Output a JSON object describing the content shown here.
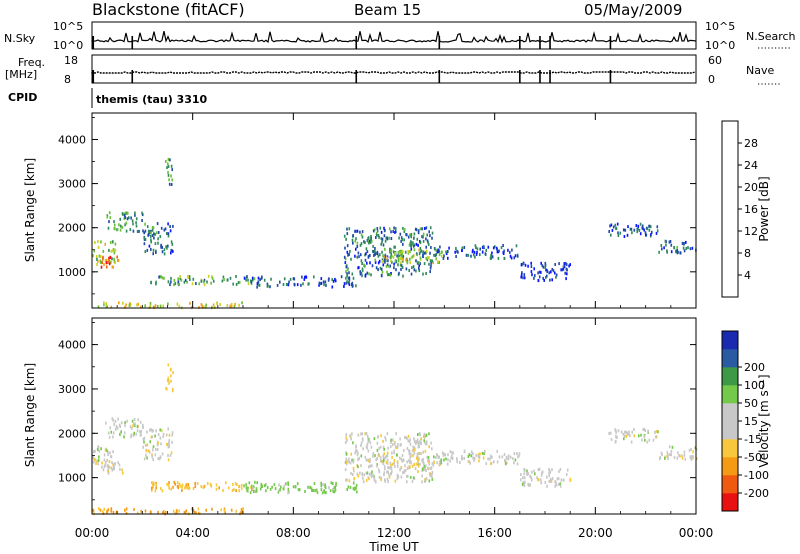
{
  "header": {
    "radar": "Blackstone (fitACF)",
    "beam": "Beam 15",
    "date": "05/May/2009"
  },
  "strips": {
    "nsky_label": "N.Sky",
    "nsky_top_tick": "10^5",
    "nsky_bottom_tick": "10^0",
    "nsearch_label": "N.Search",
    "nsearch_top_tick": "10^5",
    "nsearch_bottom_tick": "10^0",
    "freq_label": "Freq.",
    "freq_unit": "[MHz]",
    "freq_top_tick": "18",
    "freq_bottom_tick": "8",
    "nave_label": "Nave",
    "nave_top_tick": "60",
    "nave_bottom_tick": "0",
    "cpid_label": "CPID",
    "cpid_value": "themis (tau) 3310"
  },
  "colors": {
    "power_scale": [
      "#0a14ff",
      "#1f4aa8",
      "#2f8a5a",
      "#68c036",
      "#c8d220",
      "#f4a21a",
      "#f06418",
      "#e81010"
    ],
    "velocity_scale": [
      "#e81010",
      "#f05a10",
      "#f59a14",
      "#f7c83c",
      "#c8c8c8",
      "#c8c8c8",
      "#74c84a",
      "#3c9a46",
      "#2a5aa2",
      "#1a2ab0"
    ]
  },
  "chart_data": {
    "type": "heatmap",
    "xlabel": "Time UT",
    "x_ticks": [
      "00:00",
      "04:00",
      "08:00",
      "12:00",
      "16:00",
      "20:00",
      "00:00"
    ],
    "xlim_hours": [
      0,
      24
    ],
    "panels": [
      {
        "name": "power",
        "ylabel": "Slant Range [km]",
        "ylim": [
          180,
          4600
        ],
        "y_ticks": [
          "1000",
          "2000",
          "3000",
          "4000"
        ],
        "colorbar_label": "Power [dB]",
        "colorbar_ticks": [
          "4",
          "8",
          "12",
          "16",
          "20",
          "24",
          "28"
        ],
        "colorbar_range": [
          0,
          32
        ]
      },
      {
        "name": "velocity",
        "ylabel": "Slant Range [km]",
        "ylim": [
          180,
          4600
        ],
        "y_ticks": [
          "1000",
          "2000",
          "3000",
          "4000"
        ],
        "colorbar_label": "Velocity [m s⁻¹]",
        "colorbar_ticks": [
          "-200",
          "-100",
          "-50",
          "-15",
          "15",
          "50",
          "100",
          "200"
        ]
      }
    ],
    "echo_regions": [
      {
        "t": [
          0.0,
          0.9
        ],
        "r": [
          1150,
          1700
        ],
        "power": 16,
        "vel": 0
      },
      {
        "t": [
          0.3,
          1.2
        ],
        "r": [
          1100,
          1350
        ],
        "power": 26,
        "vel": 0
      },
      {
        "t": [
          0.5,
          2.0
        ],
        "r": [
          1900,
          2350
        ],
        "power": 10,
        "vel": 0
      },
      {
        "t": [
          2.0,
          3.2
        ],
        "r": [
          1400,
          2100
        ],
        "power": 8,
        "vel": 0
      },
      {
        "t": [
          2.9,
          3.2
        ],
        "r": [
          2900,
          3550
        ],
        "power": 10,
        "vel": -30
      },
      {
        "t": [
          2.3,
          6.5
        ],
        "r": [
          700,
          900
        ],
        "power": 12,
        "vel": -40
      },
      {
        "t": [
          6.0,
          10.5
        ],
        "r": [
          650,
          900
        ],
        "power": 6,
        "vel": 30
      },
      {
        "t": [
          0.0,
          6.0
        ],
        "r": [
          180,
          300
        ],
        "power": 18,
        "vel": -60
      },
      {
        "t": [
          10.0,
          13.5
        ],
        "r": [
          900,
          2000
        ],
        "power": 8,
        "vel": 0
      },
      {
        "t": [
          11.5,
          14.0
        ],
        "r": [
          1200,
          1500
        ],
        "power": 16,
        "vel": 0
      },
      {
        "t": [
          13.5,
          17.0
        ],
        "r": [
          1300,
          1600
        ],
        "power": 6,
        "vel": 0
      },
      {
        "t": [
          17.0,
          19.0
        ],
        "r": [
          800,
          1200
        ],
        "power": 4,
        "vel": 0
      },
      {
        "t": [
          20.5,
          22.5
        ],
        "r": [
          1800,
          2100
        ],
        "power": 6,
        "vel": 0
      },
      {
        "t": [
          22.5,
          24.0
        ],
        "r": [
          1400,
          1700
        ],
        "power": 8,
        "vel": 0
      }
    ]
  }
}
